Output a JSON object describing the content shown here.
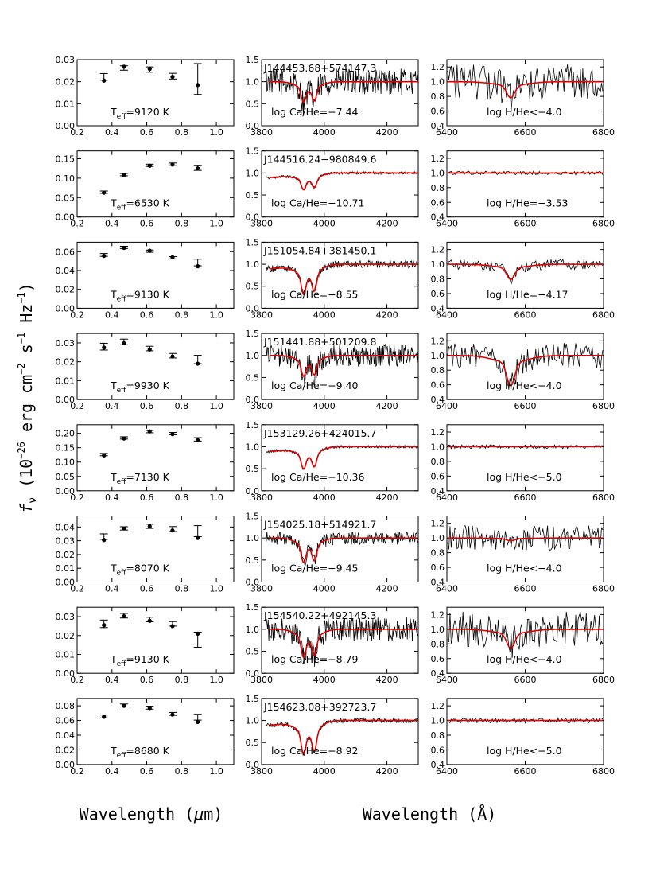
{
  "figure": {
    "y_axis_label": "f_ν (10^-26 erg cm^-2 s^-1 Hz^-1)",
    "y_label_parts": {
      "f": "f",
      "nu": "ν",
      "pre": " (10",
      "e1": "−26",
      "mid1": " erg cm",
      "e2": "−2",
      "mid2": " s",
      "e3": "−1",
      "mid3": " Hz",
      "e4": "−1",
      "post": ")"
    },
    "x_label_left": "Wavelength (μm)",
    "x_label_left_parts": {
      "pre": "Wavelength (",
      "mu": "μ",
      "post": "m)"
    },
    "x_label_right": "Wavelength (Å)"
  },
  "chart_data": {
    "type": "scatter",
    "columns": {
      "photometry": {
        "xlim": [
          0.2,
          1.1
        ],
        "xticks": [
          "0.2",
          "0.4",
          "0.6",
          "0.8",
          "1.0"
        ],
        "x": [
          0.354,
          0.469,
          0.617,
          0.748,
          0.893
        ]
      },
      "calcium": {
        "xlim": [
          3800,
          4300
        ],
        "xticks": [
          "3800",
          "4000",
          "4200"
        ],
        "ylim": [
          0,
          1.5
        ],
        "yticks": [
          "0.0",
          "0.5",
          "1.0",
          "1.5"
        ]
      },
      "halpha": {
        "xlim": [
          6400,
          6800
        ],
        "xticks": [
          "6400",
          "6600",
          "6800"
        ],
        "ylim": [
          0.4,
          1.3
        ],
        "yticks": [
          "0.4",
          "0.6",
          "0.8",
          "1.0",
          "1.2"
        ]
      }
    },
    "panels": [
      {
        "name": "J144453.68+574147.3",
        "teff_value": "=9120 K",
        "ca": "log Ca/He=−7.44",
        "h": "log H/He<−4.0",
        "phot_ylim": [
          0,
          0.03
        ],
        "phot_yticks": [
          "0.00",
          "0.01",
          "0.02",
          "0.03"
        ],
        "phot_y": [
          0.0205,
          0.0268,
          0.0258,
          0.0222,
          0.0185
        ],
        "model_y": [
          0.0222,
          0.0262,
          0.0255,
          0.0225,
          0.0212
        ],
        "err": [
          0.0015,
          0.001,
          0.0012,
          0.0013,
          0.007
        ],
        "ca_noise": 0.3,
        "ca_depth": 0.55,
        "h_noise": 0.24,
        "h_depth": 0.17
      },
      {
        "name": "J144516.24−980849.6",
        "teff_value": "=6530 K",
        "ca": "log Ca/He=−10.71",
        "h": "log H/He=−3.53",
        "phot_ylim": [
          0,
          0.17
        ],
        "phot_yticks": [
          "0.00",
          "0.05",
          "0.10",
          "0.15"
        ],
        "phot_y": [
          0.0625,
          0.108,
          0.132,
          0.135,
          0.125
        ],
        "model_y": [
          0.064,
          0.109,
          0.133,
          0.136,
          0.126
        ],
        "err": [
          0.003,
          0.003,
          0.003,
          0.003,
          0.006
        ],
        "ca_noise": 0.03,
        "ca_depth": 0.4,
        "h_noise": 0.025,
        "h_depth": 0.0
      },
      {
        "name": "J151054.84+381450.1",
        "teff_value": "=9130 K",
        "ca": "log Ca/He=−8.55",
        "h": "log H/He=−4.17",
        "phot_ylim": [
          0,
          0.07
        ],
        "phot_yticks": [
          "0.00",
          "0.02",
          "0.04",
          "0.06"
        ],
        "phot_y": [
          0.0555,
          0.064,
          0.061,
          0.054,
          0.0445
        ],
        "model_y": [
          0.0565,
          0.0645,
          0.0605,
          0.0535,
          0.0485
        ],
        "err": [
          0.0015,
          0.0012,
          0.0012,
          0.0012,
          0.0035
        ],
        "ca_noise": 0.08,
        "ca_depth": 0.75,
        "h_noise": 0.07,
        "h_depth": 0.16
      },
      {
        "name": "J151441.88+501209.8",
        "teff_value": "=9930 K",
        "ca": "log Ca/He=−9.40",
        "h": "log H/He<−4.0",
        "phot_ylim": [
          0,
          0.035
        ],
        "phot_yticks": [
          "0.00",
          "0.01",
          "0.02",
          "0.03"
        ],
        "phot_y": [
          0.0275,
          0.0298,
          0.0265,
          0.0228,
          0.019
        ],
        "model_y": [
          0.028,
          0.0305,
          0.027,
          0.0232,
          0.0212
        ],
        "err": [
          0.0018,
          0.0015,
          0.0012,
          0.0012,
          0.0022
        ],
        "ca_noise": 0.25,
        "ca_depth": 0.55,
        "h_noise": 0.17,
        "h_depth": 0.32
      },
      {
        "name": "J153129.26+424015.7",
        "teff_value": "=7130 K",
        "ca": "log Ca/He=−10.36",
        "h": "log H/He<−5.0",
        "phot_ylim": [
          0,
          0.23
        ],
        "phot_yticks": [
          "0.00",
          "0.05",
          "0.10",
          "0.15",
          "0.20"
        ],
        "phot_y": [
          0.123,
          0.182,
          0.207,
          0.197,
          0.176
        ],
        "model_y": [
          0.126,
          0.184,
          0.206,
          0.199,
          0.179
        ],
        "err": [
          0.004,
          0.004,
          0.004,
          0.004,
          0.006
        ],
        "ca_noise": 0.03,
        "ca_depth": 0.55,
        "h_noise": 0.025,
        "h_depth": 0.0
      },
      {
        "name": "J154025.18+514921.7",
        "teff_value": "=8070 K",
        "ca": "log Ca/He=−9.45",
        "h": "log H/He<−4.0",
        "phot_ylim": [
          0,
          0.048
        ],
        "phot_yticks": [
          "0.00",
          "0.01",
          "0.02",
          "0.03",
          "0.04"
        ],
        "phot_y": [
          0.0305,
          0.039,
          0.0405,
          0.0375,
          0.032
        ],
        "model_y": [
          0.033,
          0.039,
          0.0405,
          0.0385,
          0.037
        ],
        "err": [
          0.002,
          0.0012,
          0.0015,
          0.0018,
          0.004
        ],
        "ca_noise": 0.15,
        "ca_depth": 0.65,
        "h_noise": 0.17,
        "h_depth": 0.03
      },
      {
        "name": "J154540.22+492145.3",
        "teff_value": "=9130 K",
        "ca": "log Ca/He=−8.79",
        "h": "log H/He<−4.0",
        "phot_ylim": [
          0,
          0.035
        ],
        "phot_yticks": [
          "0.00",
          "0.01",
          "0.02",
          "0.03"
        ],
        "phot_y": [
          0.0255,
          0.0302,
          0.0278,
          0.025,
          0.021
        ],
        "model_y": [
          0.0262,
          0.0305,
          0.0285,
          0.0262,
          0.0178
        ],
        "err": [
          0.002,
          0.0012,
          0.0012,
          0.0012,
          0.004
        ],
        "ca_noise": 0.28,
        "ca_depth": 0.75,
        "h_noise": 0.24,
        "h_depth": 0.2
      },
      {
        "name": "J154623.08+392723.7",
        "teff_value": "=8680 K",
        "ca": "log Ca/He=−8.92",
        "h": "log H/He<−5.0",
        "phot_ylim": [
          0,
          0.09
        ],
        "phot_yticks": [
          "0.00",
          "0.02",
          "0.04",
          "0.06",
          "0.08"
        ],
        "phot_y": [
          0.065,
          0.08,
          0.077,
          0.068,
          0.058
        ],
        "model_y": [
          0.0655,
          0.0805,
          0.0775,
          0.069,
          0.0645
        ],
        "err": [
          0.002,
          0.002,
          0.002,
          0.002,
          0.004
        ],
        "ca_noise": 0.05,
        "ca_depth": 0.85,
        "h_noise": 0.035,
        "h_depth": 0.0
      }
    ]
  }
}
